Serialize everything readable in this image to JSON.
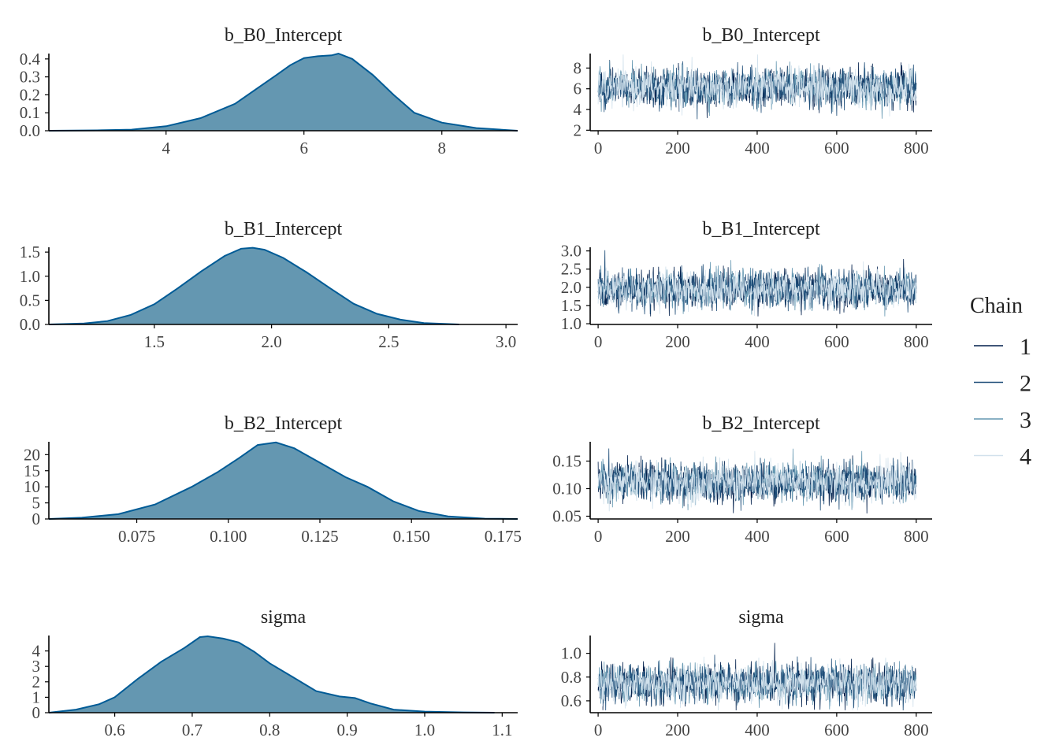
{
  "chart_data": [
    {
      "type": "area",
      "kind": "density",
      "title": "b_B0_Intercept",
      "xlim": [
        2.3,
        9.1
      ],
      "ylim": [
        0,
        0.43
      ],
      "xticks": [
        {
          "v": 4,
          "label": "4"
        },
        {
          "v": 6,
          "label": "6"
        },
        {
          "v": 8,
          "label": "8"
        }
      ],
      "yticks": [
        {
          "v": 0,
          "label": "0.0"
        },
        {
          "v": 0.1,
          "label": "0.1"
        },
        {
          "v": 0.2,
          "label": "0.2"
        },
        {
          "v": 0.3,
          "label": "0.3"
        },
        {
          "v": 0.4,
          "label": "0.4"
        }
      ],
      "x": [
        2.3,
        3.0,
        3.5,
        4.0,
        4.5,
        5.0,
        5.3,
        5.6,
        5.8,
        6.0,
        6.2,
        6.4,
        6.5,
        6.7,
        7.0,
        7.3,
        7.6,
        8.0,
        8.5,
        9.1
      ],
      "y": [
        0.0,
        0.002,
        0.006,
        0.025,
        0.07,
        0.15,
        0.23,
        0.31,
        0.365,
        0.405,
        0.415,
        0.42,
        0.43,
        0.4,
        0.31,
        0.2,
        0.1,
        0.045,
        0.015,
        0.0
      ]
    },
    {
      "type": "line",
      "kind": "trace",
      "title": "b_B0_Intercept",
      "xlim": [
        -20,
        840
      ],
      "ylim": [
        1.95,
        9.4
      ],
      "xticks": [
        {
          "v": 0,
          "label": "0"
        },
        {
          "v": 200,
          "label": "200"
        },
        {
          "v": 400,
          "label": "400"
        },
        {
          "v": 600,
          "label": "600"
        },
        {
          "v": 800,
          "label": "800"
        }
      ],
      "yticks": [
        {
          "v": 2,
          "label": "2"
        },
        {
          "v": 4,
          "label": "4"
        },
        {
          "v": 6,
          "label": "6"
        },
        {
          "v": 8,
          "label": "8"
        }
      ],
      "iterations": 800,
      "mean": 6.1,
      "sd": 0.9,
      "min": 2.2,
      "max": 9.3
    },
    {
      "type": "area",
      "kind": "density",
      "title": "b_B1_Intercept",
      "xlim": [
        1.05,
        3.05
      ],
      "ylim": [
        0,
        1.6
      ],
      "xticks": [
        {
          "v": 1.5,
          "label": "1.5"
        },
        {
          "v": 2.0,
          "label": "2.0"
        },
        {
          "v": 2.5,
          "label": "2.5"
        },
        {
          "v": 3.0,
          "label": "3.0"
        }
      ],
      "yticks": [
        {
          "v": 0,
          "label": "0.0"
        },
        {
          "v": 0.5,
          "label": "0.5"
        },
        {
          "v": 1.0,
          "label": "1.0"
        },
        {
          "v": 1.5,
          "label": "1.5"
        }
      ],
      "x": [
        1.05,
        1.2,
        1.3,
        1.4,
        1.5,
        1.6,
        1.7,
        1.8,
        1.87,
        1.92,
        1.97,
        2.05,
        2.15,
        2.25,
        2.35,
        2.45,
        2.55,
        2.65,
        2.8
      ],
      "y": [
        0.0,
        0.02,
        0.07,
        0.2,
        0.42,
        0.75,
        1.1,
        1.42,
        1.57,
        1.59,
        1.55,
        1.38,
        1.08,
        0.75,
        0.43,
        0.22,
        0.1,
        0.03,
        0.0
      ]
    },
    {
      "type": "line",
      "kind": "trace",
      "title": "b_B1_Intercept",
      "xlim": [
        -20,
        840
      ],
      "ylim": [
        0.98,
        3.1
      ],
      "xticks": [
        {
          "v": 0,
          "label": "0"
        },
        {
          "v": 200,
          "label": "200"
        },
        {
          "v": 400,
          "label": "400"
        },
        {
          "v": 600,
          "label": "600"
        },
        {
          "v": 800,
          "label": "800"
        }
      ],
      "yticks": [
        {
          "v": 1.0,
          "label": "1.0"
        },
        {
          "v": 1.5,
          "label": "1.5"
        },
        {
          "v": 2.0,
          "label": "2.0"
        },
        {
          "v": 2.5,
          "label": "2.5"
        },
        {
          "v": 3.0,
          "label": "3.0"
        }
      ],
      "iterations": 800,
      "mean": 1.95,
      "sd": 0.25,
      "min": 1.2,
      "max": 3.05
    },
    {
      "type": "area",
      "kind": "density",
      "title": "b_B2_Intercept",
      "xlim": [
        0.051,
        0.179
      ],
      "ylim": [
        0,
        24
      ],
      "xticks": [
        {
          "v": 0.075,
          "label": "0.075"
        },
        {
          "v": 0.1,
          "label": "0.100"
        },
        {
          "v": 0.125,
          "label": "0.125"
        },
        {
          "v": 0.15,
          "label": "0.150"
        },
        {
          "v": 0.175,
          "label": "0.175"
        }
      ],
      "yticks": [
        {
          "v": 0,
          "label": "0"
        },
        {
          "v": 5,
          "label": "5"
        },
        {
          "v": 10,
          "label": "10"
        },
        {
          "v": 15,
          "label": "15"
        },
        {
          "v": 20,
          "label": "20"
        }
      ],
      "x": [
        0.051,
        0.06,
        0.07,
        0.08,
        0.09,
        0.097,
        0.103,
        0.108,
        0.113,
        0.118,
        0.125,
        0.132,
        0.138,
        0.145,
        0.152,
        0.16,
        0.17,
        0.179
      ],
      "y": [
        0.0,
        0.4,
        1.5,
        4.5,
        10.0,
        14.5,
        19.0,
        23.0,
        23.8,
        22.0,
        17.5,
        13.0,
        10.0,
        5.5,
        2.5,
        0.8,
        0.1,
        0.0
      ]
    },
    {
      "type": "line",
      "kind": "trace",
      "title": "b_B2_Intercept",
      "xlim": [
        -20,
        840
      ],
      "ylim": [
        0.045,
        0.185
      ],
      "xticks": [
        {
          "v": 0,
          "label": "0"
        },
        {
          "v": 200,
          "label": "200"
        },
        {
          "v": 400,
          "label": "400"
        },
        {
          "v": 600,
          "label": "600"
        },
        {
          "v": 800,
          "label": "800"
        }
      ],
      "yticks": [
        {
          "v": 0.05,
          "label": "0.05"
        },
        {
          "v": 0.1,
          "label": "0.10"
        },
        {
          "v": 0.15,
          "label": "0.15"
        }
      ],
      "iterations": 800,
      "mean": 0.112,
      "sd": 0.017,
      "min": 0.055,
      "max": 0.18
    },
    {
      "type": "area",
      "kind": "density",
      "title": "sigma",
      "xlim": [
        0.515,
        1.12
      ],
      "ylim": [
        0,
        5.0
      ],
      "xticks": [
        {
          "v": 0.6,
          "label": "0.6"
        },
        {
          "v": 0.7,
          "label": "0.7"
        },
        {
          "v": 0.8,
          "label": "0.8"
        },
        {
          "v": 0.9,
          "label": "0.9"
        },
        {
          "v": 1.0,
          "label": "1.0"
        },
        {
          "v": 1.1,
          "label": "1.1"
        }
      ],
      "yticks": [
        {
          "v": 0,
          "label": "0"
        },
        {
          "v": 1,
          "label": "1"
        },
        {
          "v": 2,
          "label": "2"
        },
        {
          "v": 3,
          "label": "3"
        },
        {
          "v": 4,
          "label": "4"
        }
      ],
      "x": [
        0.515,
        0.55,
        0.58,
        0.6,
        0.63,
        0.66,
        0.69,
        0.71,
        0.72,
        0.74,
        0.76,
        0.78,
        0.8,
        0.83,
        0.86,
        0.89,
        0.91,
        0.93,
        0.96,
        1.0,
        1.05,
        1.09
      ],
      "y": [
        0.0,
        0.2,
        0.55,
        1.0,
        2.2,
        3.3,
        4.2,
        4.9,
        4.95,
        4.8,
        4.55,
        3.95,
        3.2,
        2.3,
        1.4,
        1.05,
        0.95,
        0.6,
        0.2,
        0.07,
        0.02,
        0.0
      ]
    },
    {
      "type": "line",
      "kind": "trace",
      "title": "sigma",
      "xlim": [
        -20,
        840
      ],
      "ylim": [
        0.5,
        1.15
      ],
      "xticks": [
        {
          "v": 0,
          "label": "0"
        },
        {
          "v": 200,
          "label": "200"
        },
        {
          "v": 400,
          "label": "400"
        },
        {
          "v": 600,
          "label": "600"
        },
        {
          "v": 800,
          "label": "800"
        }
      ],
      "yticks": [
        {
          "v": 0.6,
          "label": "0.6"
        },
        {
          "v": 0.8,
          "label": "0.8"
        },
        {
          "v": 1.0,
          "label": "1.0"
        }
      ],
      "iterations": 800,
      "mean": 0.745,
      "sd": 0.08,
      "min": 0.52,
      "max": 1.12
    }
  ],
  "legend": {
    "title": "Chain",
    "position": "right",
    "items": [
      {
        "label": "1",
        "color": "#011f4b"
      },
      {
        "label": "2",
        "color": "#1f4e79"
      },
      {
        "label": "3",
        "color": "#6497b1"
      },
      {
        "label": "4",
        "color": "#d1e1ec"
      }
    ]
  },
  "colors": {
    "density_fill": "#6497b1",
    "density_line": "#005b96",
    "axis": "#000000"
  }
}
